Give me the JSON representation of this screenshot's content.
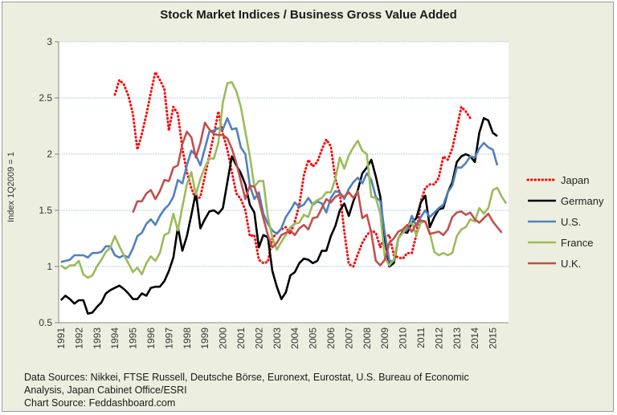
{
  "chart_data": {
    "type": "line",
    "title": "Stock Market Indices / Business Gross Value Added",
    "xlabel": "",
    "ylabel": "Index 1Q2009 = 1",
    "ylim": [
      0.5,
      3
    ],
    "yticks": [
      "0.5",
      "1",
      "1.5",
      "2",
      "2.5",
      "3"
    ],
    "xticks": [
      "1991",
      "1992",
      "1993",
      "1994",
      "1995",
      "1996",
      "1997",
      "1998",
      "1999",
      "2000",
      "2001",
      "2002",
      "2003",
      "2004",
      "2005",
      "2006",
      "2007",
      "2008",
      "2009",
      "2010",
      "2011",
      "2012",
      "2013",
      "2014",
      "2015"
    ],
    "x_start": "1991Q1",
    "frequency": "quarterly",
    "grid": true,
    "legend": "right",
    "series": [
      {
        "name": "Japan",
        "color": "#ff0000",
        "style": "dotted",
        "start_index": 12,
        "values": [
          2.53,
          2.66,
          2.62,
          2.52,
          2.36,
          2.04,
          2.18,
          2.35,
          2.55,
          2.73,
          2.66,
          2.58,
          2.21,
          2.42,
          2.36,
          2.05,
          1.84,
          1.7,
          1.59,
          1.62,
          1.8,
          1.99,
          2.17,
          2.38,
          2.18,
          2.04,
          1.84,
          1.65,
          1.6,
          1.5,
          1.27,
          1.28,
          1.06,
          1.03,
          1.04,
          1.25,
          1.3,
          1.33,
          1.35,
          1.29,
          1.4,
          1.55,
          1.81,
          1.95,
          1.89,
          1.93,
          2.04,
          2.13,
          2.07,
          1.78,
          1.65,
          1.31,
          1.02,
          1.0,
          1.11,
          1.21,
          1.28,
          1.32,
          1.3,
          1.17,
          1.26,
          1.28,
          1.1,
          1.08,
          1.07,
          1.12,
          1.12,
          1.28,
          1.58,
          1.7,
          1.73,
          1.73,
          1.79,
          1.98,
          1.95,
          2.05,
          2.23,
          2.42,
          2.38,
          2.32
        ]
      },
      {
        "name": "Germany",
        "color": "#000000",
        "style": "solid",
        "start_index": 0,
        "values": [
          0.7,
          0.74,
          0.71,
          0.67,
          0.7,
          0.7,
          0.58,
          0.59,
          0.64,
          0.68,
          0.76,
          0.79,
          0.81,
          0.83,
          0.8,
          0.76,
          0.71,
          0.71,
          0.76,
          0.74,
          0.81,
          0.82,
          0.82,
          0.87,
          0.96,
          1.08,
          1.35,
          1.14,
          1.27,
          1.46,
          1.66,
          1.34,
          1.42,
          1.49,
          1.5,
          1.47,
          1.52,
          1.75,
          1.98,
          1.9,
          1.83,
          1.73,
          1.55,
          1.48,
          1.17,
          1.28,
          1.26,
          0.96,
          0.82,
          0.71,
          0.77,
          0.92,
          0.95,
          1.03,
          1.07,
          1.06,
          1.03,
          1.05,
          1.14,
          1.14,
          1.27,
          1.36,
          1.5,
          1.56,
          1.45,
          1.58,
          1.68,
          1.83,
          1.88,
          1.95,
          1.8,
          1.62,
          1.25,
          1.0,
          1.03,
          1.25,
          1.31,
          1.3,
          1.39,
          1.43,
          1.57,
          1.63,
          1.35,
          1.44,
          1.51,
          1.52,
          1.66,
          1.75,
          1.93,
          1.98,
          2.0,
          1.98,
          1.93,
          2.19,
          2.32,
          2.3,
          2.19,
          2.16
        ]
      },
      {
        "name": "U.S.",
        "color": "#4f81bd",
        "style": "solid",
        "start_index": 0,
        "values": [
          1.04,
          1.05,
          1.06,
          1.1,
          1.1,
          1.1,
          1.08,
          1.12,
          1.12,
          1.13,
          1.18,
          1.18,
          1.1,
          1.08,
          1.1,
          1.08,
          1.16,
          1.27,
          1.3,
          1.38,
          1.42,
          1.37,
          1.45,
          1.51,
          1.55,
          1.62,
          1.77,
          1.74,
          1.9,
          2.03,
          1.99,
          1.9,
          2.05,
          2.2,
          2.21,
          2.23,
          2.22,
          2.32,
          2.22,
          2.23,
          2.06,
          2.0,
          1.72,
          1.6,
          1.66,
          1.47,
          1.38,
          1.32,
          1.29,
          1.34,
          1.44,
          1.5,
          1.57,
          1.53,
          1.55,
          1.61,
          1.55,
          1.58,
          1.56,
          1.48,
          1.61,
          1.67,
          1.66,
          1.6,
          1.69,
          1.75,
          1.79,
          1.74,
          1.83,
          1.77,
          1.62,
          1.58,
          1.3,
          1.05,
          1.05,
          1.25,
          1.3,
          1.33,
          1.45,
          1.36,
          1.44,
          1.5,
          1.44,
          1.48,
          1.52,
          1.55,
          1.66,
          1.72,
          1.88,
          1.88,
          1.92,
          1.98,
          1.97,
          2.05,
          2.1,
          2.06,
          2.04,
          1.9
        ]
      },
      {
        "name": "France",
        "color": "#9bbb59",
        "style": "solid",
        "start_index": 0,
        "values": [
          1.01,
          0.98,
          1.01,
          1.01,
          1.05,
          0.93,
          0.9,
          0.92,
          1.0,
          1.06,
          1.13,
          1.17,
          1.27,
          1.18,
          1.1,
          1.03,
          0.95,
          0.99,
          0.93,
          1.03,
          1.09,
          1.05,
          1.12,
          1.28,
          1.3,
          1.47,
          1.32,
          1.53,
          1.73,
          1.84,
          1.64,
          1.78,
          1.88,
          1.96,
          1.96,
          2.1,
          2.46,
          2.63,
          2.64,
          2.56,
          2.42,
          2.2,
          1.98,
          1.71,
          1.76,
          1.76,
          1.44,
          1.26,
          1.15,
          1.22,
          1.28,
          1.35,
          1.38,
          1.39,
          1.46,
          1.44,
          1.56,
          1.59,
          1.61,
          1.66,
          1.66,
          1.78,
          1.97,
          1.87,
          1.99,
          2.06,
          2.12,
          2.03,
          2.0,
          1.62,
          1.61,
          1.47,
          1.08,
          1.01,
          1.06,
          1.25,
          1.3,
          1.36,
          1.39,
          1.28,
          1.39,
          1.4,
          1.3,
          1.13,
          1.1,
          1.12,
          1.1,
          1.12,
          1.27,
          1.33,
          1.35,
          1.42,
          1.4,
          1.52,
          1.47,
          1.52,
          1.68,
          1.7,
          1.62,
          1.56
        ]
      },
      {
        "name": "U.K.",
        "color": "#c0504d",
        "style": "solid",
        "start_index": 16,
        "values": [
          1.48,
          1.58,
          1.58,
          1.65,
          1.68,
          1.6,
          1.67,
          1.77,
          1.76,
          1.88,
          1.9,
          2.09,
          2.2,
          2.15,
          1.97,
          2.1,
          2.28,
          2.22,
          2.18,
          2.17,
          2.17,
          2.14,
          2.05,
          1.92,
          1.76,
          1.6,
          1.72,
          1.71,
          1.59,
          1.43,
          1.28,
          1.17,
          1.21,
          1.28,
          1.3,
          1.32,
          1.28,
          1.34,
          1.37,
          1.33,
          1.43,
          1.44,
          1.52,
          1.6,
          1.57,
          1.62,
          1.64,
          1.62,
          1.66,
          1.61,
          1.67,
          1.43,
          1.46,
          1.3,
          1.05,
          1.01,
          1.06,
          1.21,
          1.25,
          1.31,
          1.33,
          1.37,
          1.31,
          1.38,
          1.41,
          1.4,
          1.29,
          1.3,
          1.31,
          1.28,
          1.33,
          1.44,
          1.48,
          1.49,
          1.46,
          1.48,
          1.42,
          1.39,
          1.43,
          1.47,
          1.4,
          1.35,
          1.3
        ]
      }
    ]
  },
  "notes": {
    "line1": "Data Sources: Nikkei, FTSE Russell, Deutsche Börse, Euronext, Eurostat, U.S. Bureau of Economic",
    "line2": "Analysis, Japan Cabinet Office/ESRI",
    "line3": "Chart Source: Feddashboard.com"
  }
}
